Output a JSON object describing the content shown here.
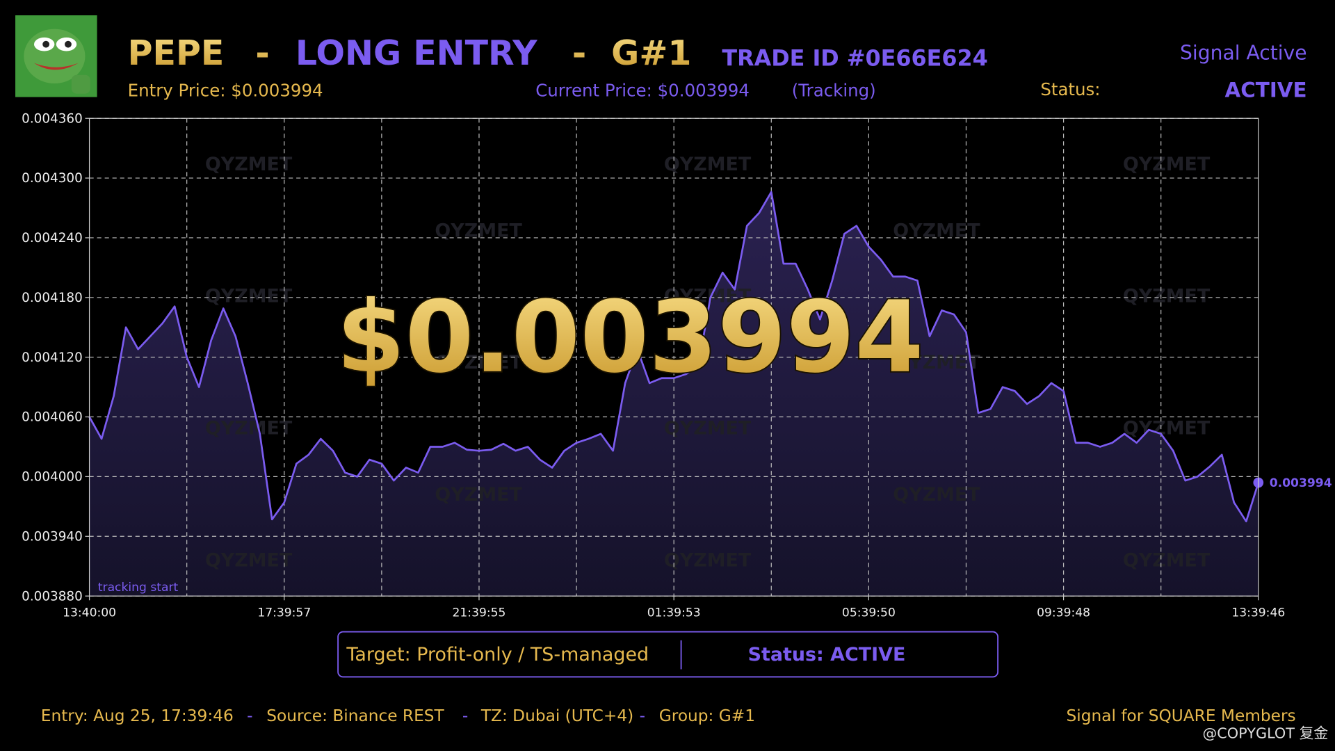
{
  "header": {
    "coin": "PEPE",
    "separator": "-",
    "direction": "LONG ENTRY",
    "group": "G#1",
    "trade_id": "TRADE ID #0E66E624",
    "signal_state": "Signal Active",
    "entry_price": "Entry Price: $0.003994",
    "current_price": "Current Price: $0.003994",
    "tracking": "(Tracking)",
    "status_label": "Status:",
    "status_value": "ACTIVE"
  },
  "chart_data": {
    "type": "line",
    "categories": [
      "13:40:00",
      null,
      null,
      null,
      null,
      null,
      null,
      null,
      null,
      null,
      null,
      null,
      null,
      null,
      null,
      null,
      "17:39:57",
      null,
      null,
      null,
      null,
      null,
      null,
      null,
      null,
      null,
      null,
      null,
      null,
      null,
      null,
      null,
      "21:39:55",
      null,
      null,
      null,
      null,
      null,
      null,
      null,
      null,
      null,
      null,
      null,
      null,
      null,
      null,
      null,
      "01:39:53",
      null,
      null,
      null,
      null,
      null,
      null,
      null,
      null,
      null,
      null,
      null,
      null,
      null,
      null,
      null,
      "05:39:50",
      null,
      null,
      null,
      null,
      null,
      null,
      null,
      null,
      null,
      null,
      null,
      null,
      null,
      null,
      null,
      "09:39:48",
      null,
      null,
      null,
      null,
      null,
      null,
      null,
      null,
      null,
      null,
      null,
      null,
      null,
      null,
      null,
      "13:39:46"
    ],
    "series": [
      {
        "color": "#7b5cf0",
        "values": [
          0.00406,
          0.004038,
          0.004081,
          0.00415,
          0.004128,
          0.004141,
          0.004154,
          0.004171,
          0.00412,
          0.00409,
          0.004137,
          0.004169,
          0.004141,
          0.004094,
          0.004043,
          0.003957,
          0.003974,
          0.004013,
          0.004022,
          0.004038,
          0.004026,
          0.004004,
          0.004,
          0.004017,
          0.004013,
          0.003996,
          0.004009,
          0.004004,
          0.00403,
          0.00403,
          0.004034,
          0.004027,
          0.004026,
          0.004027,
          0.004033,
          0.004026,
          0.00403,
          0.004017,
          0.004009,
          0.004026,
          0.004034,
          0.004038,
          0.004043,
          0.004026,
          0.004094,
          0.004128,
          0.004094,
          0.004099,
          0.004099,
          0.004103,
          0.004111,
          0.00418,
          0.004205,
          0.004188,
          0.004252,
          0.004265,
          0.004286,
          0.004214,
          0.004214,
          0.004188,
          0.004158,
          0.004197,
          0.004244,
          0.004252,
          0.004231,
          0.004218,
          0.004201,
          0.004201,
          0.004197,
          0.004141,
          0.004167,
          0.004163,
          0.004145,
          0.004064,
          0.004068,
          0.00409,
          0.004086,
          0.004073,
          0.004081,
          0.004094,
          0.004086,
          0.004034,
          0.004034,
          0.00403,
          0.004034,
          0.004043,
          0.004034,
          0.004047,
          0.004043,
          0.004026,
          0.003996,
          0.004,
          0.00401,
          0.004022,
          0.003974,
          0.003955,
          0.003994
        ]
      }
    ],
    "ylim": [
      0.00388,
      0.00436
    ],
    "yticks": [
      {
        "value": 0.00388,
        "label": "0.003880"
      },
      {
        "value": 0.00394,
        "label": "0.003940"
      },
      {
        "value": 0.004,
        "label": "0.004000"
      },
      {
        "value": 0.00406,
        "label": "0.004060"
      },
      {
        "value": 0.00412,
        "label": "0.004120"
      },
      {
        "value": 0.00418,
        "label": "0.004180"
      },
      {
        "value": 0.00424,
        "label": "0.004240"
      },
      {
        "value": 0.0043,
        "label": "0.004300"
      },
      {
        "value": 0.00436,
        "label": "0.004360"
      }
    ],
    "grid": true,
    "annotations": {
      "price": "$0.003994",
      "start": "tracking start"
    },
    "watermark": "QYZMET"
  },
  "info_box": {
    "target": "Target: Profit-only / TS-managed",
    "status": "Status: ACTIVE"
  },
  "footer": {
    "entry": "Entry: Aug 25, 17:39:46",
    "separator": "-",
    "source": "Source: Binance REST",
    "timezone": "TZ: Dubai (UTC+4)",
    "group": "Group: G#1",
    "members": "Signal for SQUARE Members",
    "credit": "@COPYGLOT 复金"
  }
}
